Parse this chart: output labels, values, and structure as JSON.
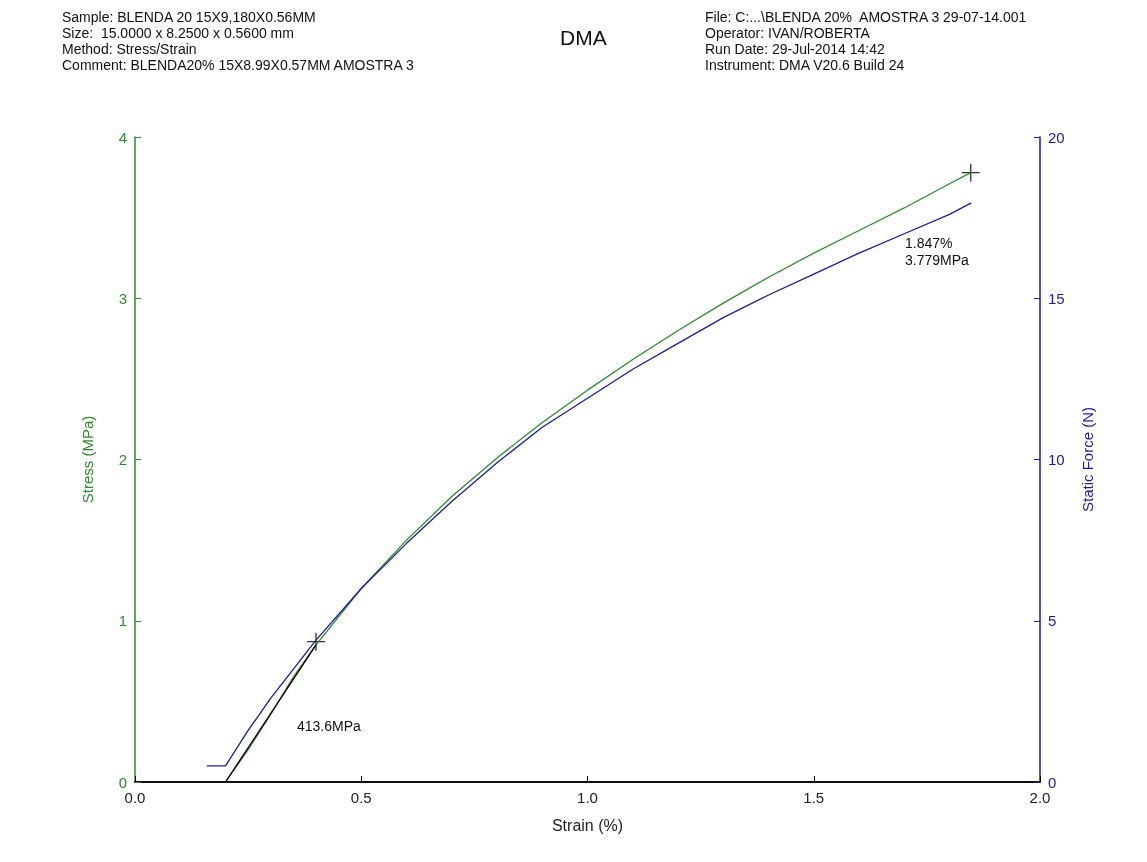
{
  "chart_data": {
    "type": "line",
    "title": "DMA",
    "xlabel": "Strain (%)",
    "ylabel": "Stress (MPa)",
    "y2label": "Static Force (N)",
    "xlim": [
      0,
      2
    ],
    "xticks": [
      {
        "value": 0,
        "label": "0.0"
      },
      {
        "value": 0.5,
        "label": "0.5"
      },
      {
        "value": 1,
        "label": "1.0"
      },
      {
        "value": 1.5,
        "label": "1.5"
      },
      {
        "value": 2,
        "label": "2.0"
      }
    ],
    "ylim": [
      0,
      4
    ],
    "yticks": [
      0,
      1,
      2,
      3,
      4
    ],
    "y2lim": [
      0,
      20
    ],
    "y2ticks": [
      0,
      5,
      10,
      15,
      20
    ],
    "grid": false,
    "marker": "none",
    "line_style": "solid",
    "series": [
      {
        "color": "#2e8b2e",
        "x": [
          0.2,
          0.25,
          0.3,
          0.35,
          0.4,
          0.5,
          0.6,
          0.7,
          0.8,
          0.9,
          1.0,
          1.1,
          1.2,
          1.3,
          1.4,
          1.5,
          1.6,
          1.7,
          1.8,
          1.847
        ],
        "values": [
          0,
          0.2,
          0.42,
          0.65,
          0.85,
          1.2,
          1.5,
          1.77,
          2.01,
          2.23,
          2.43,
          2.62,
          2.8,
          2.97,
          3.13,
          3.28,
          3.42,
          3.56,
          3.71,
          3.779
        ]
      },
      {
        "color": "#1c1c9c",
        "axis": "y2",
        "x": [
          0.16,
          0.2,
          0.25,
          0.3,
          0.35,
          0.4,
          0.5,
          0.6,
          0.7,
          0.8,
          0.9,
          1.0,
          1.1,
          1.2,
          1.3,
          1.4,
          1.5,
          1.6,
          1.7,
          1.8,
          1.847
        ],
        "values": [
          0.5,
          0.5,
          1.6,
          2.6,
          3.5,
          4.4,
          6.0,
          7.4,
          8.7,
          9.9,
          11.0,
          11.9,
          12.8,
          13.6,
          14.4,
          15.1,
          15.75,
          16.4,
          17.0,
          17.6,
          17.95
        ]
      },
      {
        "color": "#000000",
        "x": [
          0.2,
          0.4
        ],
        "values": [
          0,
          0.85
        ]
      },
      {
        "type": "scatter",
        "color": "#000000",
        "marker": "cross",
        "x": [
          0.4,
          1.847
        ],
        "values": [
          0.87,
          3.779
        ]
      }
    ],
    "annotations": [
      "Sample: BLENDA 20 15X9,180X0.56MM",
      "Size:  15.0000 x 8.2500 x 0.5600 mm",
      "Method: Stress/Strain",
      "Comment: BLENDA20% 15X8.99X0.57MM AMOSTRA 3",
      "File: C:...\\BLENDA 20%  AMOSTRA 3 29-07-14.001",
      "Operator: IVAN/ROBERTA",
      "Run Date: 29-Jul-2014 14:42",
      "Instrument: DMA V20.6 Build 24",
      "413.6MPa",
      "1.847%\n3.779MPa"
    ]
  }
}
